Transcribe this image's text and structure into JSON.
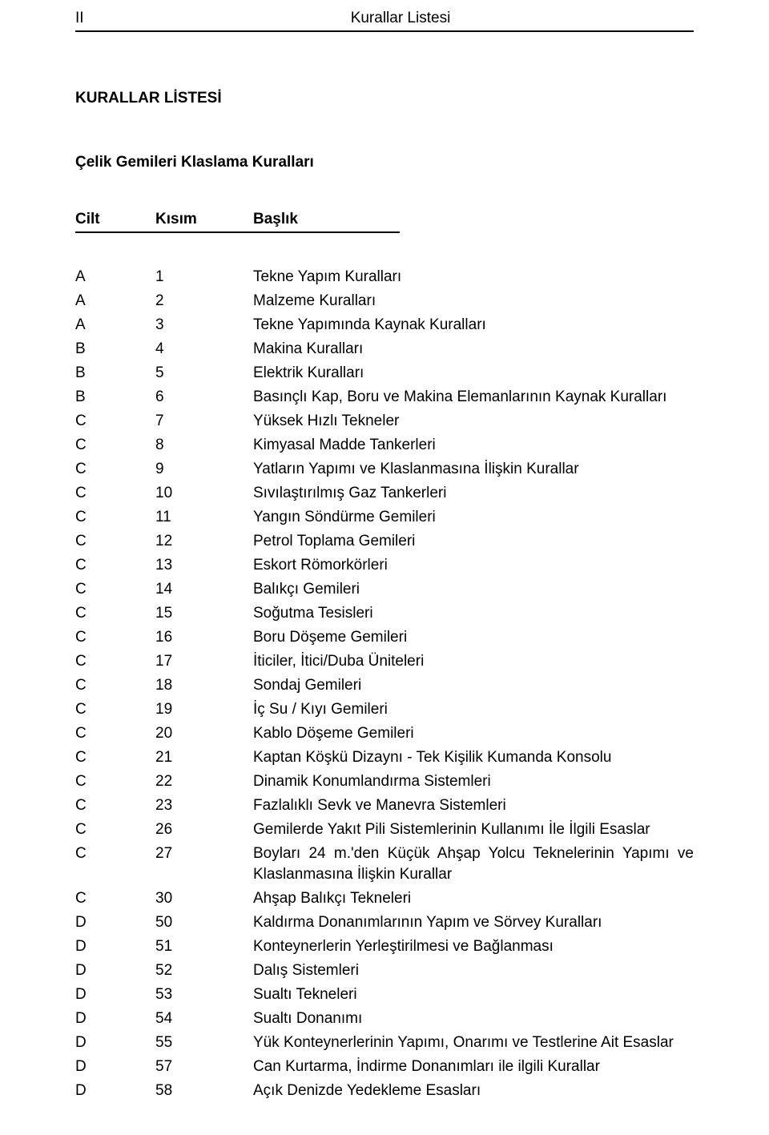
{
  "header": {
    "page_num": "II",
    "title": "Kurallar Listesi"
  },
  "main_title": "KURALLAR LİSTESİ",
  "subtitle": "Çelik Gemileri Klaslama Kuralları",
  "columns": {
    "cilt": "Cilt",
    "kisim": "Kısım",
    "baslik": "Başlık"
  },
  "rows": [
    {
      "cilt": "A",
      "kisim": "1",
      "baslik": "Tekne Yapım Kuralları"
    },
    {
      "cilt": "A",
      "kisim": "2",
      "baslik": "Malzeme Kuralları"
    },
    {
      "cilt": "A",
      "kisim": "3",
      "baslik": "Tekne Yapımında Kaynak Kuralları"
    },
    {
      "cilt": "B",
      "kisim": "4",
      "baslik": "Makina Kuralları"
    },
    {
      "cilt": "B",
      "kisim": "5",
      "baslik": "Elektrik Kuralları"
    },
    {
      "cilt": "B",
      "kisim": "6",
      "baslik": "Basınçlı Kap, Boru ve Makina Elemanlarının Kaynak Kuralları"
    },
    {
      "cilt": "C",
      "kisim": "7",
      "baslik": "Yüksek Hızlı Tekneler"
    },
    {
      "cilt": "C",
      "kisim": "8",
      "baslik": "Kimyasal Madde Tankerleri"
    },
    {
      "cilt": "C",
      "kisim": "9",
      "baslik": "Yatların Yapımı ve Klaslanmasına İlişkin Kurallar"
    },
    {
      "cilt": "C",
      "kisim": "10",
      "baslik": "Sıvılaştırılmış Gaz Tankerleri"
    },
    {
      "cilt": "C",
      "kisim": "11",
      "baslik": "Yangın Söndürme Gemileri"
    },
    {
      "cilt": "C",
      "kisim": "12",
      "baslik": "Petrol Toplama Gemileri"
    },
    {
      "cilt": "C",
      "kisim": "13",
      "baslik": "Eskort Römorkörleri"
    },
    {
      "cilt": "C",
      "kisim": "14",
      "baslik": "Balıkçı Gemileri"
    },
    {
      "cilt": "C",
      "kisim": "15",
      "baslik": "Soğutma Tesisleri"
    },
    {
      "cilt": "C",
      "kisim": "16",
      "baslik": "Boru Döşeme Gemileri"
    },
    {
      "cilt": "C",
      "kisim": "17",
      "baslik": "İticiler, İtici/Duba Üniteleri"
    },
    {
      "cilt": "C",
      "kisim": "18",
      "baslik": "Sondaj Gemileri"
    },
    {
      "cilt": "C",
      "kisim": "19",
      "baslik": "İç Su / Kıyı Gemileri"
    },
    {
      "cilt": "C",
      "kisim": "20",
      "baslik": "Kablo Döşeme Gemileri"
    },
    {
      "cilt": "C",
      "kisim": "21",
      "baslik": "Kaptan Köşkü Dizaynı - Tek Kişilik Kumanda Konsolu"
    },
    {
      "cilt": "C",
      "kisim": "22",
      "baslik": "Dinamik Konumlandırma Sistemleri"
    },
    {
      "cilt": "C",
      "kisim": "23",
      "baslik": "Fazlalıklı Sevk ve Manevra Sistemleri"
    },
    {
      "cilt": "C",
      "kisim": "26",
      "baslik": "Gemilerde Yakıt Pili Sistemlerinin Kullanımı İle İlgili Esaslar"
    },
    {
      "cilt": "C",
      "kisim": "27",
      "baslik": "Boyları 24 m.'den Küçük Ahşap Yolcu Teknelerinin Yapımı ve Klaslanmasına İlişkin Kurallar"
    },
    {
      "cilt": "C",
      "kisim": "30",
      "baslik": "Ahşap Balıkçı Tekneleri"
    },
    {
      "cilt": "D",
      "kisim": "50",
      "baslik": "Kaldırma Donanımlarının Yapım ve Sörvey Kuralları"
    },
    {
      "cilt": "D",
      "kisim": "51",
      "baslik": "Konteynerlerin Yerleştirilmesi ve Bağlanması"
    },
    {
      "cilt": "D",
      "kisim": "52",
      "baslik": "Dalış Sistemleri"
    },
    {
      "cilt": "D",
      "kisim": "53",
      "baslik": "Sualtı Tekneleri"
    },
    {
      "cilt": "D",
      "kisim": "54",
      "baslik": "Sualtı Donanımı"
    },
    {
      "cilt": "D",
      "kisim": "55",
      "baslik": "Yük Konteynerlerinin Yapımı, Onarımı ve Testlerine Ait Esaslar"
    },
    {
      "cilt": "D",
      "kisim": "57",
      "baslik": "Can Kurtarma, İndirme Donanımları ile ilgili Kurallar"
    },
    {
      "cilt": "D",
      "kisim": "58",
      "baslik": "Açık Denizde Yedekleme Esasları"
    }
  ]
}
